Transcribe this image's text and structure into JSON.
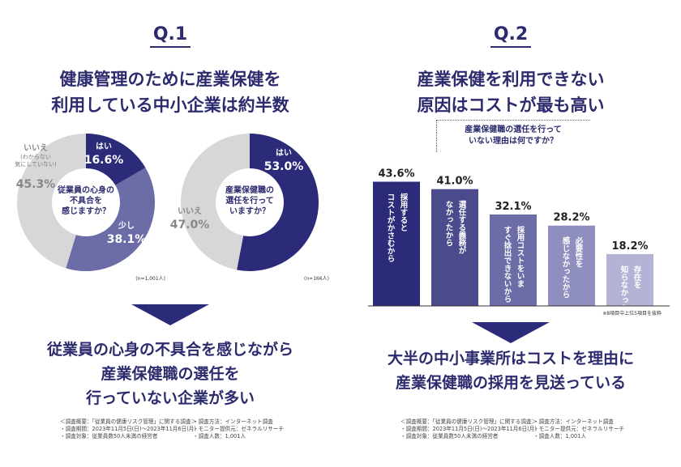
{
  "q1": {
    "label": "Q.1",
    "headline": [
      "健康管理のために産業保健を",
      "利用している中小企業は約半数"
    ],
    "conclusion": [
      "従業員の心身の不具合を感じながら",
      "産業保健職の選任を",
      "行っていない企業が多い"
    ],
    "survey": {
      "col1": [
        "＜調査概要：「従業員の健康リスク管理」に関する調査＞",
        "・調査期間：2023年11月5日(日)～2023年11月6日(月)",
        "・調査対象：従業員数50人未満の経営者"
      ],
      "col2": [
        "・調査方法：インターネット調査",
        "・モニター提供元：ゼネラルリサーチ",
        "・調査人数：1,001人"
      ]
    }
  },
  "q2": {
    "label": "Q.2",
    "headline": [
      "産業保健を利用できない",
      "原因はコストが最も高い"
    ],
    "question": [
      "産業保健職の選任を行って",
      "いない理由は何ですか？"
    ],
    "footnote": "※8項目中上位5項目を抜粋",
    "conclusion": [
      "大半の中小事業所はコストを理由に",
      "産業保健職の採用を見送っている"
    ],
    "survey": {
      "col1": [
        "＜調査概要：「従業員の健康リスク管理」に関する調査＞",
        "・調査期間：2023年11月5日(日)～2023年11月6日(月)",
        "・調査対象：従業員数50人未満の経営者"
      ],
      "col2": [
        "・調査方法：インターネット調査",
        "・モニター提供元：ゼネラルリサーチ",
        "・調査人数：1,001人"
      ]
    }
  },
  "chart_data": [
    {
      "type": "pie",
      "title": "従業員の心身の不具合を感じますか？",
      "center_label": [
        "従業員の心身の",
        "不具合を",
        "感じますか？"
      ],
      "n_label": "(n=1,001人)",
      "slices": [
        {
          "label": "はい",
          "value": 16.6,
          "value_label": "16.6%",
          "color": "#2b2b7a"
        },
        {
          "label": "少し",
          "value": 38.1,
          "value_label": "38.1%",
          "color": "#6c6ca6"
        },
        {
          "label": "いいえ",
          "sublabel": [
            "(わからない",
            "気にしていない)"
          ],
          "value": 45.3,
          "value_label": "45.3%",
          "color": "#d7d7d9"
        }
      ]
    },
    {
      "type": "pie",
      "title": "産業保健職の選任を行っていますか？",
      "center_label": [
        "産業保健職の",
        "選任を行って",
        "いますか？"
      ],
      "n_label": "(n=166人)",
      "slices": [
        {
          "label": "はい",
          "value": 53.0,
          "value_label": "53.0%",
          "color": "#2b2b7a"
        },
        {
          "label": "いいえ",
          "value": 47.0,
          "value_label": "47.0%",
          "color": "#d7d7d9"
        }
      ]
    },
    {
      "type": "bar",
      "title": "産業保健職の選任を行っていない理由は何ですか？",
      "categories": [
        "採用するとコストがかさむから",
        "選任する義務がなかったから",
        "採用コストをいますぐ捻出できないから",
        "必要性を感じなかったから",
        "存在を知らなかった"
      ],
      "category_lines": [
        [
          "採用すると",
          "コストがかさむから"
        ],
        [
          "選任する義務が",
          "なかったから"
        ],
        [
          "採用コストをいま",
          "すぐ捻出できないから"
        ],
        [
          "必要性を",
          "感じなかったから"
        ],
        [
          "存在を",
          "知らなかった"
        ]
      ],
      "values": [
        43.6,
        41.0,
        32.1,
        28.2,
        18.2
      ],
      "value_labels": [
        "43.6%",
        "41.0%",
        "32.1%",
        "28.2%",
        "18.2%"
      ],
      "colors": [
        "#2b2b7a",
        "#4a4a8c",
        "#6c6ca6",
        "#8f8fbf",
        "#b3b3d6"
      ],
      "ylim": [
        0,
        50
      ]
    }
  ]
}
